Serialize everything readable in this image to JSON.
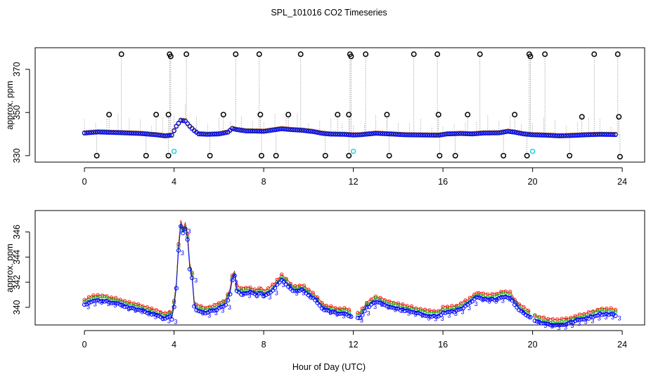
{
  "figure": {
    "title": "SPL_101016  CO2 Timeseries",
    "xlabel": "Hour of Day (UTC)"
  },
  "chart_data": [
    {
      "type": "scatter",
      "panel": "top",
      "ylabel": "approx. ppm",
      "xlim": [
        -2.2,
        25
      ],
      "ylim": [
        327,
        380
      ],
      "x_ticks": [
        "0",
        "4",
        "8",
        "12",
        "16",
        "20",
        "24"
      ],
      "y_ticks": [
        "330",
        "350",
        "370"
      ],
      "series_colors": {
        "red": "#ff0000",
        "green": "#00b000",
        "blue": "#0000ff",
        "cyan": "#30d0e0",
        "outlier": "#000000",
        "whisker": "#999999"
      },
      "baseline": [
        [
          0,
          340.4
        ],
        [
          0.6,
          340.9
        ],
        [
          1.5,
          340.6
        ],
        [
          2.5,
          340.2
        ],
        [
          3.2,
          339.6
        ],
        [
          3.6,
          339.1
        ],
        [
          3.9,
          339.4
        ],
        [
          4.1,
          343.5
        ],
        [
          4.3,
          346.3
        ],
        [
          4.5,
          346.0
        ],
        [
          4.7,
          343.5
        ],
        [
          4.9,
          341.5
        ],
        [
          5.1,
          340.0
        ],
        [
          5.5,
          339.8
        ],
        [
          6.0,
          340.0
        ],
        [
          6.4,
          340.8
        ],
        [
          6.6,
          342.5
        ],
        [
          6.8,
          342.0
        ],
        [
          7.2,
          341.4
        ],
        [
          7.7,
          341.3
        ],
        [
          8.0,
          341.2
        ],
        [
          8.4,
          341.8
        ],
        [
          8.8,
          342.4
        ],
        [
          9.2,
          342.0
        ],
        [
          9.7,
          341.7
        ],
        [
          10.2,
          341.1
        ],
        [
          10.6,
          340.3
        ],
        [
          11.0,
          339.9
        ],
        [
          11.6,
          339.8
        ],
        [
          12.0,
          339.5
        ],
        [
          12.3,
          339.6
        ],
        [
          13.0,
          340.3
        ],
        [
          13.6,
          340.0
        ],
        [
          14.3,
          339.6
        ],
        [
          15.0,
          339.5
        ],
        [
          15.8,
          339.4
        ],
        [
          16.2,
          340.0
        ],
        [
          16.8,
          340.2
        ],
        [
          17.3,
          340.0
        ],
        [
          17.8,
          340.4
        ],
        [
          18.5,
          340.5
        ],
        [
          18.9,
          341.2
        ],
        [
          19.2,
          340.8
        ],
        [
          19.6,
          340.0
        ],
        [
          20.0,
          339.6
        ],
        [
          20.6,
          339.4
        ],
        [
          21.2,
          339.1
        ],
        [
          21.8,
          339.3
        ],
        [
          22.4,
          339.6
        ],
        [
          23.0,
          339.8
        ],
        [
          23.7,
          339.7
        ]
      ],
      "high_outliers": [
        [
          1.65,
          377
        ],
        [
          3.8,
          377
        ],
        [
          3.85,
          376
        ],
        [
          4.55,
          377
        ],
        [
          6.75,
          377
        ],
        [
          7.8,
          377
        ],
        [
          9.65,
          377
        ],
        [
          11.85,
          377
        ],
        [
          11.9,
          376
        ],
        [
          12.55,
          377
        ],
        [
          14.7,
          377
        ],
        [
          15.75,
          377
        ],
        [
          17.65,
          377
        ],
        [
          19.85,
          377
        ],
        [
          19.9,
          376
        ],
        [
          20.55,
          377
        ],
        [
          22.75,
          377
        ],
        [
          23.8,
          377
        ]
      ],
      "mid_outliers": [
        [
          1.1,
          349
        ],
        [
          3.2,
          349
        ],
        [
          3.75,
          349
        ],
        [
          6.2,
          349
        ],
        [
          7.85,
          349
        ],
        [
          9.1,
          349
        ],
        [
          11.3,
          349
        ],
        [
          11.8,
          349
        ],
        [
          13.5,
          349
        ],
        [
          15.8,
          349
        ],
        [
          17.1,
          349
        ],
        [
          19.2,
          349
        ],
        [
          22.2,
          348
        ],
        [
          23.85,
          348
        ]
      ],
      "low_outliers": [
        [
          0.55,
          330
        ],
        [
          2.75,
          330
        ],
        [
          3.75,
          330
        ],
        [
          5.6,
          330
        ],
        [
          7.9,
          330
        ],
        [
          8.55,
          330
        ],
        [
          10.75,
          330
        ],
        [
          11.8,
          330
        ],
        [
          13.6,
          330
        ],
        [
          15.85,
          330
        ],
        [
          16.55,
          330
        ],
        [
          18.7,
          330
        ],
        [
          19.75,
          330
        ],
        [
          21.65,
          330
        ],
        [
          23.9,
          329.5
        ]
      ],
      "cyan_points": [
        [
          4.0,
          332
        ],
        [
          12.0,
          332
        ],
        [
          20.0,
          332
        ]
      ]
    },
    {
      "type": "line",
      "panel": "bottom",
      "ylabel": "approx. ppm",
      "xlim": [
        -2.2,
        25
      ],
      "ylim": [
        338.6,
        347.7
      ],
      "x_ticks": [
        "0",
        "4",
        "8",
        "12",
        "16",
        "20",
        "24"
      ],
      "y_ticks": [
        "340",
        "342",
        "344",
        "346"
      ],
      "point_glyph": "3",
      "series": [
        {
          "name": "red",
          "color": "#ff0000",
          "offset": 0.35,
          "points": [
            [
              0,
              340.6
            ],
            [
              0.3,
              340.9
            ],
            [
              0.6,
              341.0
            ],
            [
              1.0,
              340.9
            ],
            [
              1.5,
              340.7
            ],
            [
              2.0,
              340.4
            ],
            [
              2.5,
              340.2
            ],
            [
              3.0,
              339.9
            ],
            [
              3.2,
              339.8
            ],
            [
              3.6,
              339.5
            ],
            [
              3.8,
              339.7
            ],
            [
              3.9,
              339.5
            ],
            [
              4.0,
              340.5
            ],
            [
              4.1,
              342.0
            ],
            [
              4.2,
              345.0
            ],
            [
              4.3,
              346.9
            ],
            [
              4.4,
              346.3
            ],
            [
              4.5,
              346.7
            ],
            [
              4.6,
              345.8
            ],
            [
              4.7,
              343.5
            ],
            [
              4.8,
              342.8
            ],
            [
              4.9,
              340.5
            ],
            [
              5.0,
              340.2
            ],
            [
              5.4,
              340.0
            ],
            [
              5.8,
              340.2
            ],
            [
              6.3,
              340.6
            ],
            [
              6.5,
              341.5
            ],
            [
              6.6,
              342.6
            ],
            [
              6.7,
              342.9
            ],
            [
              6.8,
              341.7
            ],
            [
              7.0,
              341.5
            ],
            [
              7.4,
              341.6
            ],
            [
              7.7,
              341.4
            ],
            [
              7.9,
              341.6
            ],
            [
              8.0,
              341.3
            ],
            [
              8.3,
              341.6
            ],
            [
              8.6,
              342.2
            ],
            [
              8.8,
              342.6
            ],
            [
              9.0,
              342.3
            ],
            [
              9.3,
              341.7
            ],
            [
              9.7,
              341.8
            ],
            [
              10.0,
              341.4
            ],
            [
              10.3,
              341.0
            ],
            [
              10.7,
              340.2
            ],
            [
              11.2,
              340.0
            ],
            [
              11.7,
              339.9
            ],
            [
              12.0,
              339.6
            ],
            [
              12.3,
              339.6
            ],
            [
              12.6,
              340.4
            ],
            [
              13.0,
              340.9
            ],
            [
              13.4,
              340.6
            ],
            [
              14.0,
              340.3
            ],
            [
              14.5,
              340.1
            ],
            [
              15.2,
              339.8
            ],
            [
              15.8,
              339.7
            ],
            [
              16.0,
              340.0
            ],
            [
              16.5,
              340.1
            ],
            [
              17.0,
              340.5
            ],
            [
              17.5,
              341.2
            ],
            [
              18.0,
              341.0
            ],
            [
              18.4,
              341.1
            ],
            [
              18.7,
              341.3
            ],
            [
              19.0,
              341.2
            ],
            [
              19.3,
              340.4
            ],
            [
              19.6,
              340.0
            ],
            [
              20.0,
              339.5
            ],
            [
              20.4,
              339.2
            ],
            [
              21.0,
              339.0
            ],
            [
              21.5,
              339.1
            ],
            [
              22.0,
              339.4
            ],
            [
              22.5,
              339.6
            ],
            [
              23.0,
              339.9
            ],
            [
              23.5,
              339.9
            ],
            [
              23.7,
              339.8
            ]
          ]
        },
        {
          "name": "green",
          "color": "#00b000",
          "offset": 0.18
        },
        {
          "name": "blue",
          "color": "#0000ff",
          "offset": 0.0
        }
      ]
    }
  ]
}
